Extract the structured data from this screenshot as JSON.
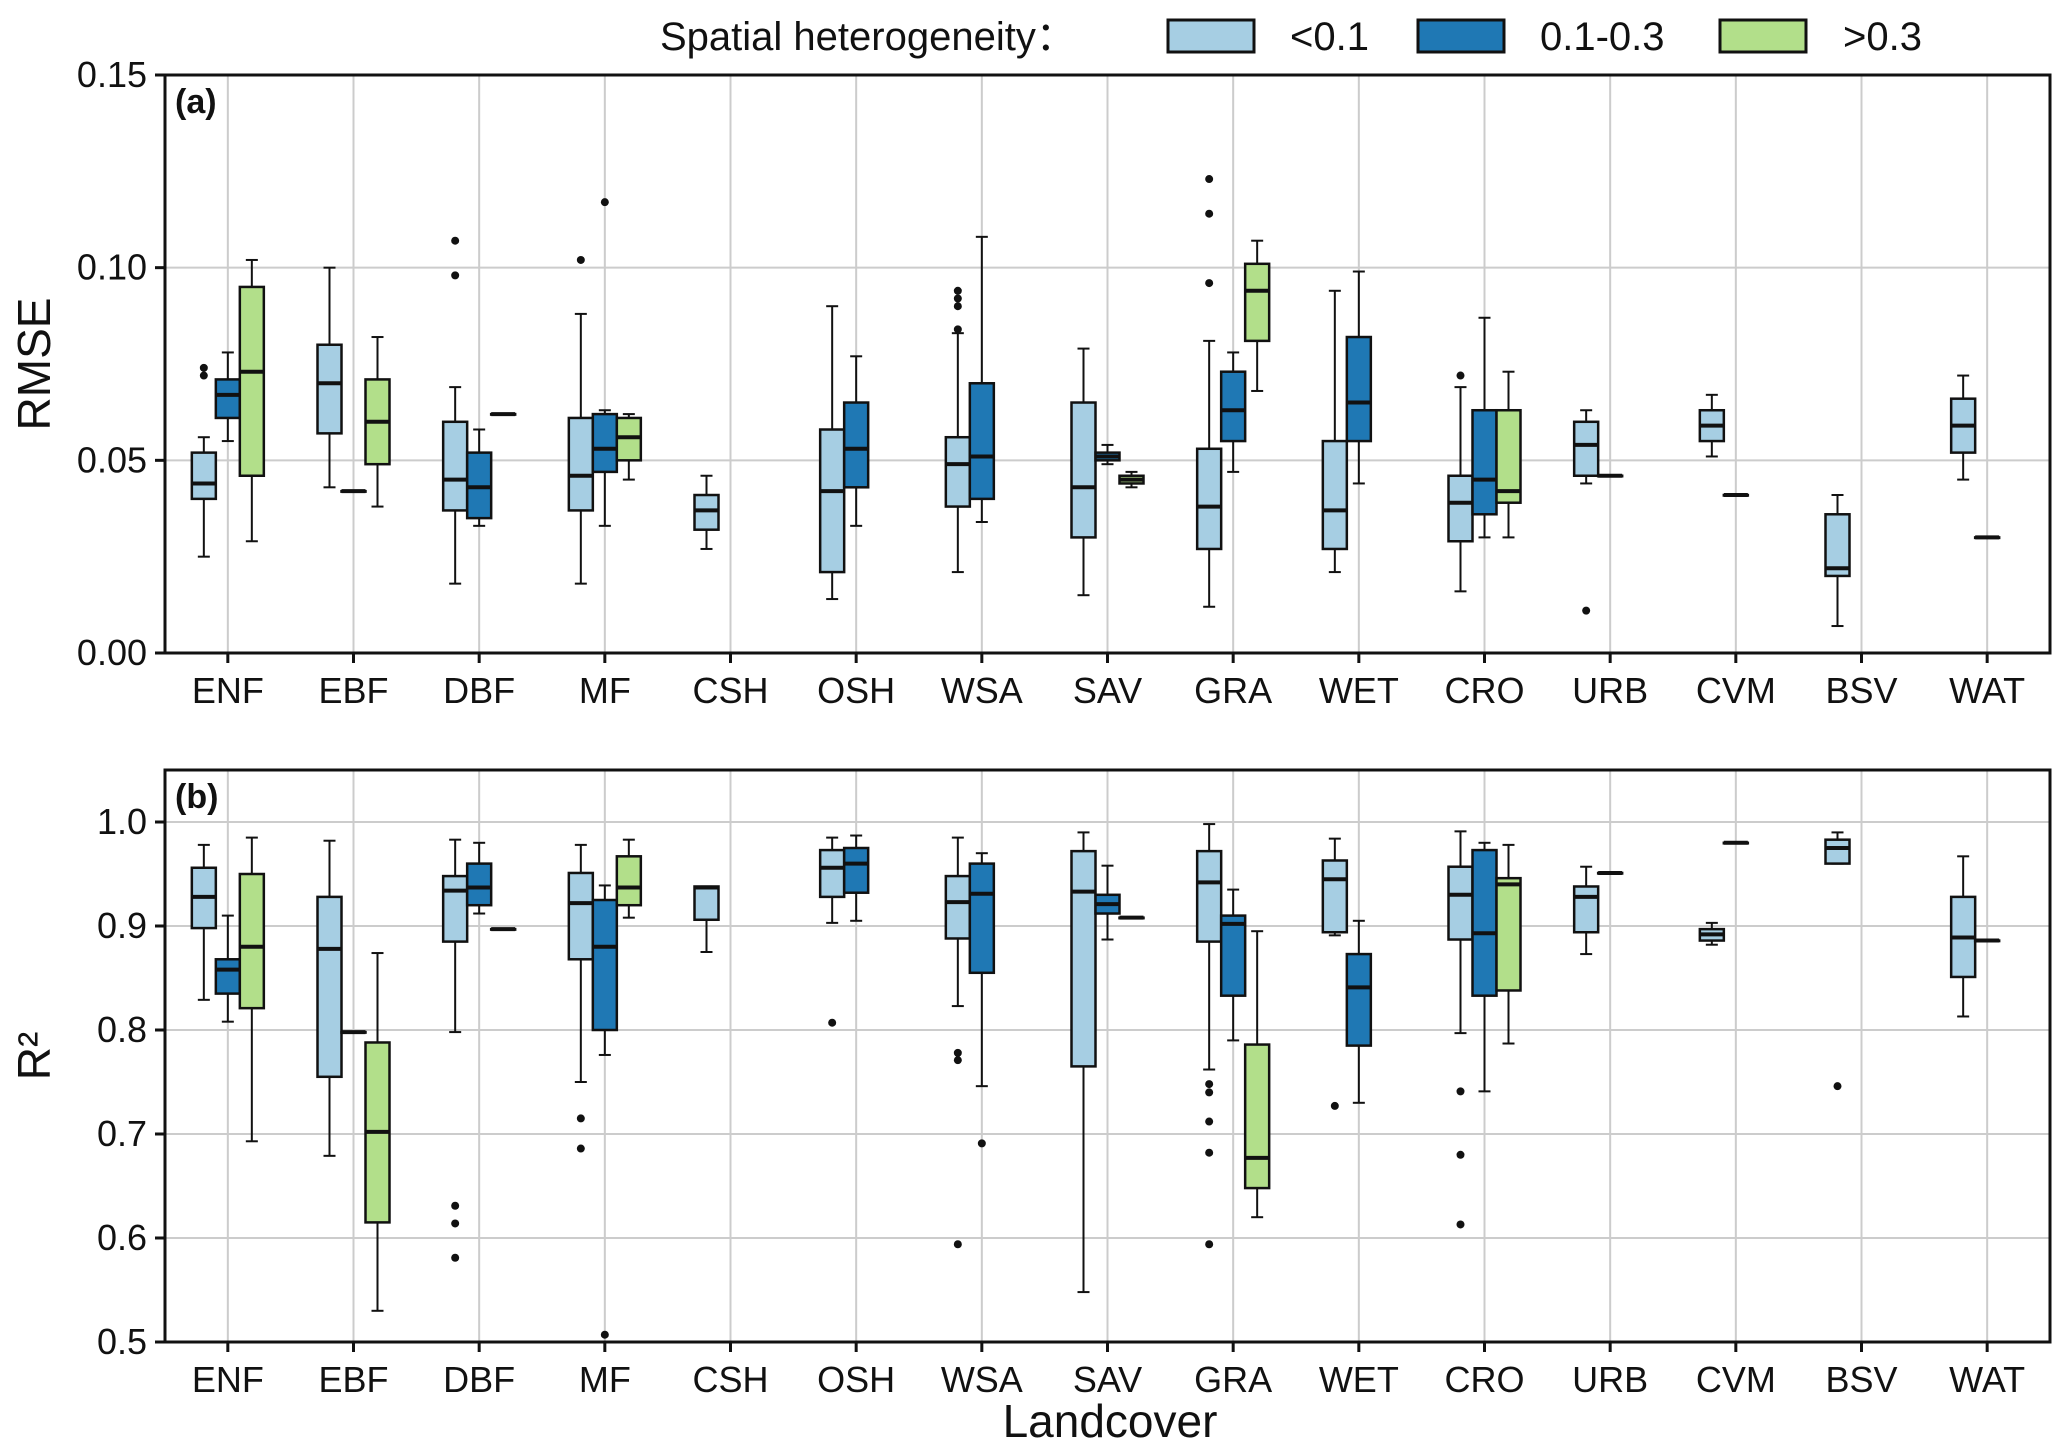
{
  "chart_data": {
    "type": "box",
    "xlabel": "Landcover",
    "categories": [
      "ENF",
      "EBF",
      "DBF",
      "MF",
      "CSH",
      "OSH",
      "WSA",
      "SAV",
      "GRA",
      "WET",
      "CRO",
      "URB",
      "CVM",
      "BSV",
      "WAT"
    ],
    "legend": {
      "title": "Spatial heterogeneity：",
      "position": "top-right",
      "groups": [
        {
          "name": "<0.1",
          "color": "#a6cee3"
        },
        {
          "name": "0.1-0.3",
          "color": "#1f78b4"
        },
        {
          "name": ">0.3",
          "color": "#b2df8a"
        }
      ]
    },
    "panels": [
      {
        "label": "(a)",
        "ylabel": "RMSE",
        "ylim": [
          0,
          0.15
        ],
        "yticks": [
          0.0,
          0.05,
          0.1,
          0.15
        ],
        "ytick_labels": [
          "0.00",
          "0.05",
          "0.10",
          "0.15"
        ],
        "grid": true,
        "series": {
          "<0.1": [
            {
              "cat": "ENF",
              "min": 0.025,
              "q1": 0.04,
              "median": 0.044,
              "q3": 0.052,
              "max": 0.056,
              "fliers": [
                0.072,
                0.074
              ]
            },
            {
              "cat": "EBF",
              "min": 0.043,
              "q1": 0.057,
              "median": 0.07,
              "q3": 0.08,
              "max": 0.1,
              "fliers": []
            },
            {
              "cat": "DBF",
              "min": 0.018,
              "q1": 0.037,
              "median": 0.045,
              "q3": 0.06,
              "max": 0.069,
              "fliers": [
                0.098,
                0.107
              ]
            },
            {
              "cat": "MF",
              "min": 0.018,
              "q1": 0.037,
              "median": 0.046,
              "q3": 0.061,
              "max": 0.088,
              "fliers": [
                0.102
              ]
            },
            {
              "cat": "CSH",
              "min": 0.027,
              "q1": 0.032,
              "median": 0.037,
              "q3": 0.041,
              "max": 0.046,
              "fliers": []
            },
            {
              "cat": "OSH",
              "min": 0.014,
              "q1": 0.021,
              "median": 0.042,
              "q3": 0.058,
              "max": 0.09,
              "fliers": []
            },
            {
              "cat": "WSA",
              "min": 0.021,
              "q1": 0.038,
              "median": 0.049,
              "q3": 0.056,
              "max": 0.083,
              "fliers": [
                0.084,
                0.09,
                0.092,
                0.094
              ]
            },
            {
              "cat": "SAV",
              "min": 0.015,
              "q1": 0.03,
              "median": 0.043,
              "q3": 0.065,
              "max": 0.079,
              "fliers": []
            },
            {
              "cat": "GRA",
              "min": 0.012,
              "q1": 0.027,
              "median": 0.038,
              "q3": 0.053,
              "max": 0.081,
              "fliers": [
                0.096,
                0.114,
                0.123
              ]
            },
            {
              "cat": "WET",
              "min": 0.021,
              "q1": 0.027,
              "median": 0.037,
              "q3": 0.055,
              "max": 0.094,
              "fliers": []
            },
            {
              "cat": "CRO",
              "min": 0.016,
              "q1": 0.029,
              "median": 0.039,
              "q3": 0.046,
              "max": 0.069,
              "fliers": [
                0.072
              ]
            },
            {
              "cat": "URB",
              "min": 0.044,
              "q1": 0.046,
              "median": 0.054,
              "q3": 0.06,
              "max": 0.063,
              "fliers": [
                0.011
              ]
            },
            {
              "cat": "CVM",
              "min": 0.051,
              "q1": 0.055,
              "median": 0.059,
              "q3": 0.063,
              "max": 0.067,
              "fliers": []
            },
            {
              "cat": "BSV",
              "min": 0.007,
              "q1": 0.02,
              "median": 0.022,
              "q3": 0.036,
              "max": 0.041,
              "fliers": []
            },
            {
              "cat": "WAT",
              "min": 0.045,
              "q1": 0.052,
              "median": 0.059,
              "q3": 0.066,
              "max": 0.072,
              "fliers": []
            }
          ],
          "0.1-0.3": [
            {
              "cat": "ENF",
              "min": 0.055,
              "q1": 0.061,
              "median": 0.067,
              "q3": 0.071,
              "max": 0.078,
              "fliers": []
            },
            {
              "cat": "EBF",
              "min": 0.042,
              "q1": 0.042,
              "median": 0.042,
              "q3": 0.042,
              "max": 0.042,
              "fliers": []
            },
            {
              "cat": "DBF",
              "min": 0.033,
              "q1": 0.035,
              "median": 0.043,
              "q3": 0.052,
              "max": 0.058,
              "fliers": []
            },
            {
              "cat": "MF",
              "min": 0.033,
              "q1": 0.047,
              "median": 0.053,
              "q3": 0.062,
              "max": 0.063,
              "fliers": [
                0.117
              ]
            },
            {
              "cat": "OSH",
              "min": 0.033,
              "q1": 0.043,
              "median": 0.053,
              "q3": 0.065,
              "max": 0.077,
              "fliers": []
            },
            {
              "cat": "WSA",
              "min": 0.034,
              "q1": 0.04,
              "median": 0.051,
              "q3": 0.07,
              "max": 0.108,
              "fliers": []
            },
            {
              "cat": "SAV",
              "min": 0.049,
              "q1": 0.05,
              "median": 0.051,
              "q3": 0.052,
              "max": 0.054,
              "fliers": []
            },
            {
              "cat": "GRA",
              "min": 0.047,
              "q1": 0.055,
              "median": 0.063,
              "q3": 0.073,
              "max": 0.078,
              "fliers": []
            },
            {
              "cat": "WET",
              "min": 0.044,
              "q1": 0.055,
              "median": 0.065,
              "q3": 0.082,
              "max": 0.099,
              "fliers": []
            },
            {
              "cat": "CRO",
              "min": 0.03,
              "q1": 0.036,
              "median": 0.045,
              "q3": 0.063,
              "max": 0.087,
              "fliers": []
            },
            {
              "cat": "URB",
              "min": 0.046,
              "q1": 0.046,
              "median": 0.046,
              "q3": 0.046,
              "max": 0.046,
              "fliers": []
            },
            {
              "cat": "CVM",
              "min": 0.041,
              "q1": 0.041,
              "median": 0.041,
              "q3": 0.041,
              "max": 0.041,
              "fliers": []
            },
            {
              "cat": "WAT",
              "min": 0.03,
              "q1": 0.03,
              "median": 0.03,
              "q3": 0.03,
              "max": 0.03,
              "fliers": []
            }
          ],
          ">0.3": [
            {
              "cat": "ENF",
              "min": 0.029,
              "q1": 0.046,
              "median": 0.073,
              "q3": 0.095,
              "max": 0.102,
              "fliers": []
            },
            {
              "cat": "EBF",
              "min": 0.038,
              "q1": 0.049,
              "median": 0.06,
              "q3": 0.071,
              "max": 0.082,
              "fliers": []
            },
            {
              "cat": "DBF",
              "min": 0.062,
              "q1": 0.062,
              "median": 0.062,
              "q3": 0.062,
              "max": 0.062,
              "fliers": []
            },
            {
              "cat": "MF",
              "min": 0.045,
              "q1": 0.05,
              "median": 0.056,
              "q3": 0.061,
              "max": 0.062,
              "fliers": []
            },
            {
              "cat": "SAV",
              "min": 0.043,
              "q1": 0.044,
              "median": 0.045,
              "q3": 0.046,
              "max": 0.047,
              "fliers": []
            },
            {
              "cat": "GRA",
              "min": 0.068,
              "q1": 0.081,
              "median": 0.094,
              "q3": 0.101,
              "max": 0.107,
              "fliers": []
            },
            {
              "cat": "CRO",
              "min": 0.03,
              "q1": 0.039,
              "median": 0.042,
              "q3": 0.063,
              "max": 0.073,
              "fliers": []
            }
          ]
        }
      },
      {
        "label": "(b)",
        "ylabel": "R²",
        "ylim": [
          0.5,
          1.05
        ],
        "yticks": [
          0.5,
          0.6,
          0.7,
          0.8,
          0.9,
          1.0
        ],
        "ytick_labels": [
          "0.5",
          "0.6",
          "0.7",
          "0.8",
          "0.9",
          "1.0"
        ],
        "grid": true,
        "series": {
          "<0.1": [
            {
              "cat": "ENF",
              "min": 0.829,
              "q1": 0.898,
              "median": 0.928,
              "q3": 0.956,
              "max": 0.978,
              "fliers": []
            },
            {
              "cat": "EBF",
              "min": 0.679,
              "q1": 0.755,
              "median": 0.878,
              "q3": 0.928,
              "max": 0.982,
              "fliers": []
            },
            {
              "cat": "DBF",
              "min": 0.798,
              "q1": 0.885,
              "median": 0.934,
              "q3": 0.948,
              "max": 0.983,
              "fliers": [
                0.631,
                0.614,
                0.581
              ]
            },
            {
              "cat": "MF",
              "min": 0.75,
              "q1": 0.868,
              "median": 0.922,
              "q3": 0.951,
              "max": 0.978,
              "fliers": [
                0.715,
                0.686
              ]
            },
            {
              "cat": "CSH",
              "min": 0.875,
              "q1": 0.906,
              "median": 0.937,
              "q3": 0.938,
              "max": 0.938,
              "fliers": []
            },
            {
              "cat": "OSH",
              "min": 0.903,
              "q1": 0.928,
              "median": 0.956,
              "q3": 0.973,
              "max": 0.985,
              "fliers": [
                0.807
              ]
            },
            {
              "cat": "WSA",
              "min": 0.823,
              "q1": 0.888,
              "median": 0.923,
              "q3": 0.948,
              "max": 0.985,
              "fliers": [
                0.778,
                0.771,
                0.594
              ]
            },
            {
              "cat": "SAV",
              "min": 0.548,
              "q1": 0.765,
              "median": 0.933,
              "q3": 0.972,
              "max": 0.99,
              "fliers": []
            },
            {
              "cat": "GRA",
              "min": 0.762,
              "q1": 0.885,
              "median": 0.942,
              "q3": 0.972,
              "max": 0.998,
              "fliers": [
                0.748,
                0.74,
                0.712,
                0.682,
                0.594
              ]
            },
            {
              "cat": "WET",
              "min": 0.891,
              "q1": 0.894,
              "median": 0.945,
              "q3": 0.963,
              "max": 0.984,
              "fliers": [
                0.727
              ]
            },
            {
              "cat": "CRO",
              "min": 0.797,
              "q1": 0.887,
              "median": 0.93,
              "q3": 0.957,
              "max": 0.991,
              "fliers": [
                0.741,
                0.68,
                0.613
              ]
            },
            {
              "cat": "URB",
              "min": 0.873,
              "q1": 0.894,
              "median": 0.928,
              "q3": 0.938,
              "max": 0.957,
              "fliers": []
            },
            {
              "cat": "CVM",
              "min": 0.882,
              "q1": 0.886,
              "median": 0.892,
              "q3": 0.897,
              "max": 0.903,
              "fliers": []
            },
            {
              "cat": "BSV",
              "min": 0.96,
              "q1": 0.96,
              "median": 0.975,
              "q3": 0.983,
              "max": 0.99,
              "fliers": [
                0.746
              ]
            },
            {
              "cat": "WAT",
              "min": 0.813,
              "q1": 0.851,
              "median": 0.889,
              "q3": 0.928,
              "max": 0.967,
              "fliers": []
            }
          ],
          "0.1-0.3": [
            {
              "cat": "ENF",
              "min": 0.808,
              "q1": 0.835,
              "median": 0.858,
              "q3": 0.868,
              "max": 0.91,
              "fliers": []
            },
            {
              "cat": "EBF",
              "min": 0.798,
              "q1": 0.798,
              "median": 0.798,
              "q3": 0.798,
              "max": 0.798,
              "fliers": []
            },
            {
              "cat": "DBF",
              "min": 0.912,
              "q1": 0.92,
              "median": 0.937,
              "q3": 0.96,
              "max": 0.98,
              "fliers": []
            },
            {
              "cat": "MF",
              "min": 0.776,
              "q1": 0.8,
              "median": 0.88,
              "q3": 0.925,
              "max": 0.939,
              "fliers": [
                0.507
              ]
            },
            {
              "cat": "OSH",
              "min": 0.905,
              "q1": 0.932,
              "median": 0.96,
              "q3": 0.975,
              "max": 0.987,
              "fliers": []
            },
            {
              "cat": "WSA",
              "min": 0.746,
              "q1": 0.855,
              "median": 0.931,
              "q3": 0.96,
              "max": 0.97,
              "fliers": [
                0.691
              ]
            },
            {
              "cat": "SAV",
              "min": 0.887,
              "q1": 0.912,
              "median": 0.921,
              "q3": 0.93,
              "max": 0.958,
              "fliers": []
            },
            {
              "cat": "GRA",
              "min": 0.79,
              "q1": 0.833,
              "median": 0.902,
              "q3": 0.91,
              "max": 0.935,
              "fliers": []
            },
            {
              "cat": "WET",
              "min": 0.73,
              "q1": 0.785,
              "median": 0.841,
              "q3": 0.873,
              "max": 0.905,
              "fliers": []
            },
            {
              "cat": "CRO",
              "min": 0.741,
              "q1": 0.833,
              "median": 0.893,
              "q3": 0.973,
              "max": 0.98,
              "fliers": []
            },
            {
              "cat": "URB",
              "min": 0.951,
              "q1": 0.951,
              "median": 0.951,
              "q3": 0.951,
              "max": 0.951,
              "fliers": []
            },
            {
              "cat": "CVM",
              "min": 0.98,
              "q1": 0.98,
              "median": 0.98,
              "q3": 0.98,
              "max": 0.98,
              "fliers": []
            },
            {
              "cat": "WAT",
              "min": 0.886,
              "q1": 0.886,
              "median": 0.886,
              "q3": 0.886,
              "max": 0.886,
              "fliers": []
            }
          ],
          ">0.3": [
            {
              "cat": "ENF",
              "min": 0.693,
              "q1": 0.821,
              "median": 0.88,
              "q3": 0.95,
              "max": 0.985,
              "fliers": []
            },
            {
              "cat": "EBF",
              "min": 0.53,
              "q1": 0.615,
              "median": 0.702,
              "q3": 0.788,
              "max": 0.874,
              "fliers": []
            },
            {
              "cat": "DBF",
              "min": 0.897,
              "q1": 0.897,
              "median": 0.897,
              "q3": 0.897,
              "max": 0.897,
              "fliers": []
            },
            {
              "cat": "MF",
              "min": 0.908,
              "q1": 0.92,
              "median": 0.937,
              "q3": 0.967,
              "max": 0.983,
              "fliers": []
            },
            {
              "cat": "SAV",
              "min": 0.908,
              "q1": 0.908,
              "median": 0.908,
              "q3": 0.908,
              "max": 0.908,
              "fliers": []
            },
            {
              "cat": "GRA",
              "min": 0.62,
              "q1": 0.648,
              "median": 0.677,
              "q3": 0.786,
              "max": 0.895,
              "fliers": []
            },
            {
              "cat": "CRO",
              "min": 0.787,
              "q1": 0.838,
              "median": 0.94,
              "q3": 0.946,
              "max": 0.978,
              "fliers": []
            }
          ]
        }
      }
    ]
  }
}
